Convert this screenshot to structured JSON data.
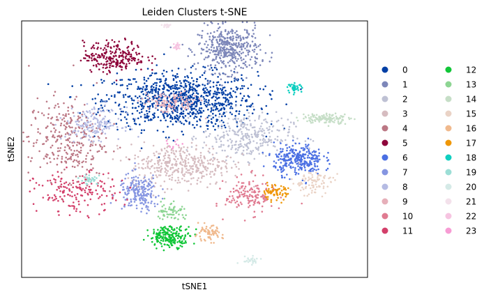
{
  "chart_data": {
    "type": "scatter",
    "title": "Leiden Clusters t-SNE",
    "xlabel": "tSNE1",
    "ylabel": "tSNE2",
    "xlim": [
      0,
      100
    ],
    "ylim": [
      0,
      100
    ],
    "grid": false,
    "legend_placement": "right",
    "series": [
      {
        "name": "0",
        "color": "#023fa5",
        "center": [
          46,
          69
        ],
        "spread": [
          11,
          5.5
        ],
        "count": 900
      },
      {
        "name": "1",
        "color": "#7d87b9",
        "center": [
          60,
          89
        ],
        "spread": [
          4.5,
          4.5
        ],
        "count": 420
      },
      {
        "name": "2",
        "color": "#bec1d4",
        "center": [
          65,
          55
        ],
        "spread": [
          6.5,
          4.5
        ],
        "count": 300
      },
      {
        "name": "3",
        "color": "#d6bcc0",
        "center": [
          46,
          44
        ],
        "spread": [
          7.5,
          4
        ],
        "count": 380
      },
      {
        "name": "4",
        "color": "#bb7784",
        "center": [
          13,
          54
        ],
        "spread": [
          5.5,
          8
        ],
        "count": 300
      },
      {
        "name": "5",
        "color": "#8e063b",
        "center": [
          27,
          86
        ],
        "spread": [
          4.5,
          3
        ],
        "count": 240
      },
      {
        "name": "6",
        "color": "#4a6fe3",
        "center": [
          80,
          46
        ],
        "spread": [
          3.5,
          3
        ],
        "count": 280
      },
      {
        "name": "7",
        "color": "#8595e1",
        "center": [
          34,
          33
        ],
        "spread": [
          3,
          3.5
        ],
        "count": 200
      },
      {
        "name": "8",
        "color": "#b5bbe3",
        "center": [
          21,
          60
        ],
        "spread": [
          4,
          3
        ],
        "count": 160
      },
      {
        "name": "9",
        "color": "#e6afb9",
        "center": [
          43,
          68
        ],
        "spread": [
          4,
          2
        ],
        "count": 110
      },
      {
        "name": "10",
        "color": "#e07b91",
        "center": [
          66,
          32
        ],
        "spread": [
          3.5,
          3.5
        ],
        "count": 150
      },
      {
        "name": "11",
        "color": "#d33f6a",
        "center": [
          16,
          33
        ],
        "spread": [
          6,
          4
        ],
        "count": 170
      },
      {
        "name": "12",
        "color": "#11c638",
        "center": [
          43,
          16
        ],
        "spread": [
          3,
          2
        ],
        "count": 200
      },
      {
        "name": "13",
        "color": "#8dd593",
        "center": [
          43,
          26
        ],
        "spread": [
          2,
          2
        ],
        "count": 60
      },
      {
        "name": "14",
        "color": "#c6dec7",
        "center": [
          88,
          62
        ],
        "spread": [
          3.5,
          1
        ],
        "count": 120
      },
      {
        "name": "15",
        "color": "#ead3c6",
        "center": [
          84,
          37
        ],
        "spread": [
          3,
          2.5
        ],
        "count": 90
      },
      {
        "name": "16",
        "color": "#f0b98d",
        "center": [
          54,
          17
        ],
        "spread": [
          2,
          1.5
        ],
        "count": 70
      },
      {
        "name": "17",
        "color": "#ef9708",
        "center": [
          73,
          33
        ],
        "spread": [
          2,
          1.5
        ],
        "count": 70
      },
      {
        "name": "18",
        "color": "#0fcfc0",
        "center": [
          79,
          74
        ],
        "spread": [
          1,
          0.8
        ],
        "count": 40
      },
      {
        "name": "19",
        "color": "#9cded6",
        "center": [
          20,
          38
        ],
        "spread": [
          1.5,
          1
        ],
        "count": 30
      },
      {
        "name": "20",
        "color": "#d5eae7",
        "center": [
          66,
          7
        ],
        "spread": [
          1.5,
          0.8
        ],
        "count": 25
      },
      {
        "name": "21",
        "color": "#f3e1eb",
        "center": [
          42,
          98
        ],
        "spread": [
          0.8,
          0.5
        ],
        "count": 20
      },
      {
        "name": "22",
        "color": "#f6c4e1",
        "center": [
          45,
          90
        ],
        "spread": [
          0.6,
          1
        ],
        "count": 20
      },
      {
        "name": "23",
        "color": "#f79cd4",
        "center": [
          44,
          52
        ],
        "spread": [
          1.5,
          1
        ],
        "count": 10
      }
    ]
  }
}
